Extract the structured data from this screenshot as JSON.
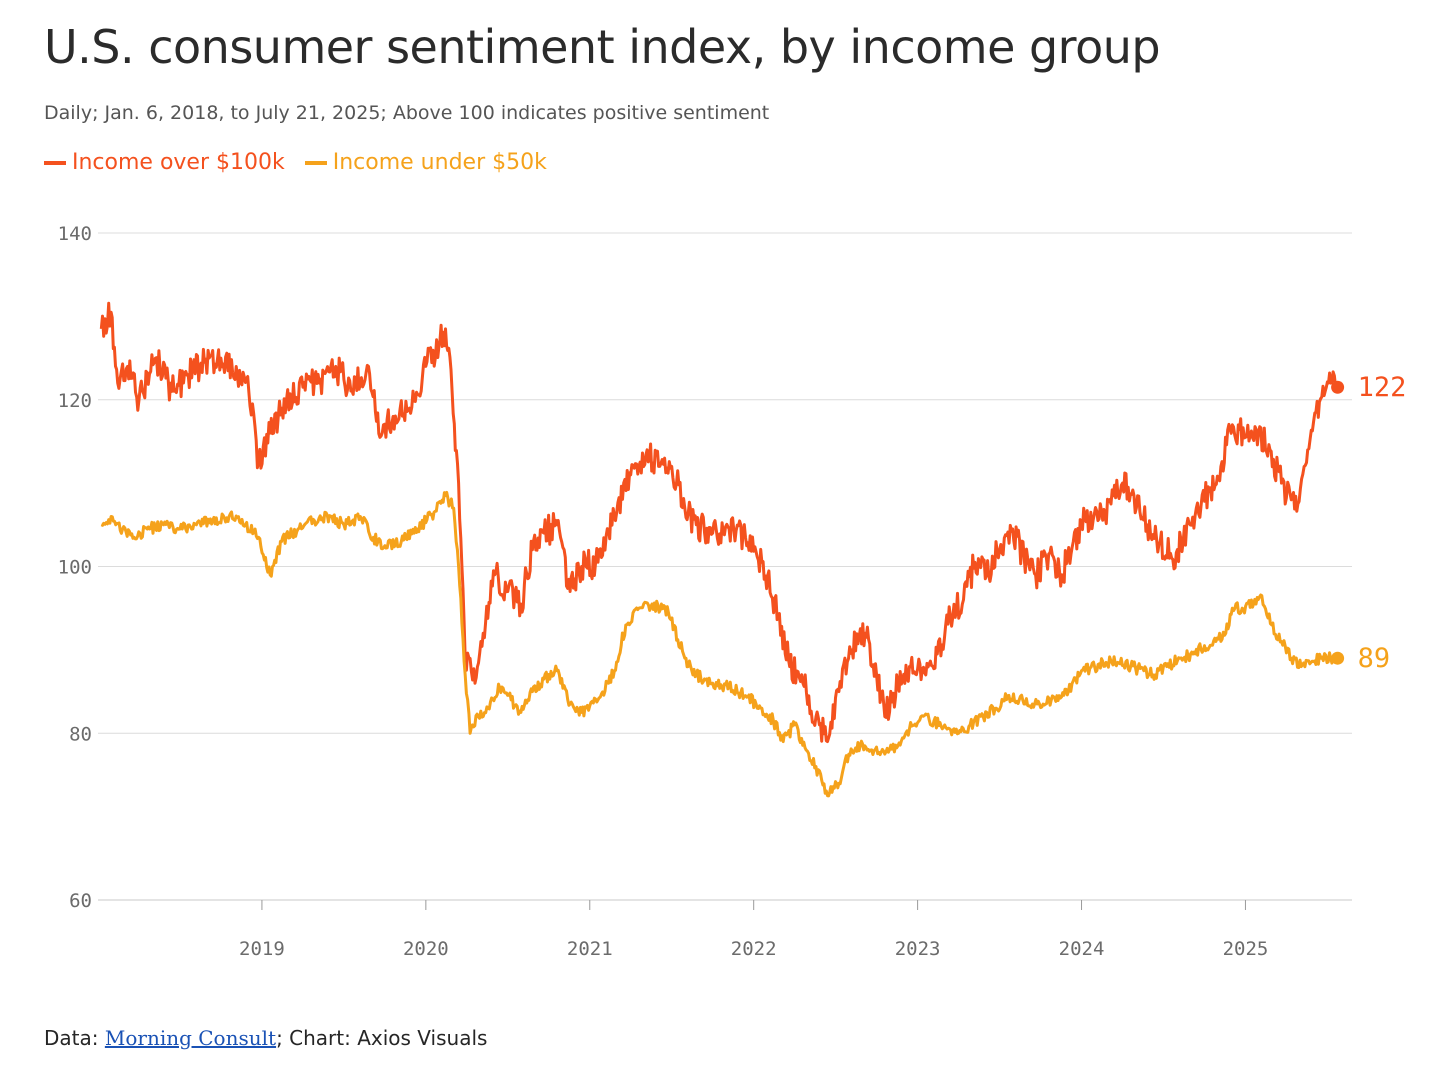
{
  "header": {
    "title": "U.S. consumer sentiment index, by income group",
    "subtitle": "Daily; Jan. 6, 2018, to July 21, 2025; Above 100 indicates positive sentiment"
  },
  "legend": [
    {
      "label": "Income over $100k",
      "color": "#f4511e"
    },
    {
      "label": "Income under $50k",
      "color": "#f5a21b"
    }
  ],
  "footer": {
    "data_prefix": "Data: ",
    "source_link": "Morning Consult",
    "suffix": "; Chart: Axios Visuals"
  },
  "chart_data": {
    "type": "line",
    "title": "U.S. consumer sentiment index, by income group",
    "xlabel": "",
    "ylabel": "",
    "xlim": [
      2018.0,
      2025.65
    ],
    "ylim": [
      60,
      140
    ],
    "yticks": [
      140,
      120,
      100,
      80,
      60
    ],
    "xticks": [
      2019,
      2020,
      2021,
      2022,
      2023,
      2024,
      2025
    ],
    "grid": true,
    "series": [
      {
        "name": "Income over $100k",
        "color": "#f4511e",
        "end_label": "122",
        "points": [
          [
            2018.02,
            128.5
          ],
          [
            2018.08,
            130.5
          ],
          [
            2018.12,
            122
          ],
          [
            2018.18,
            124
          ],
          [
            2018.25,
            120
          ],
          [
            2018.35,
            125
          ],
          [
            2018.45,
            121
          ],
          [
            2018.55,
            123
          ],
          [
            2018.65,
            124.5
          ],
          [
            2018.75,
            125
          ],
          [
            2018.85,
            123
          ],
          [
            2018.92,
            121
          ],
          [
            2018.98,
            112.5
          ],
          [
            2019.05,
            116
          ],
          [
            2019.15,
            120
          ],
          [
            2019.25,
            121.5
          ],
          [
            2019.35,
            122
          ],
          [
            2019.45,
            124
          ],
          [
            2019.55,
            121
          ],
          [
            2019.65,
            124
          ],
          [
            2019.72,
            115.5
          ],
          [
            2019.8,
            118
          ],
          [
            2019.9,
            119
          ],
          [
            2020.0,
            124
          ],
          [
            2020.08,
            126.5
          ],
          [
            2020.12,
            128.5
          ],
          [
            2020.16,
            121
          ],
          [
            2020.2,
            110
          ],
          [
            2020.24,
            89
          ],
          [
            2020.3,
            86
          ],
          [
            2020.35,
            92
          ],
          [
            2020.42,
            99
          ],
          [
            2020.5,
            97
          ],
          [
            2020.58,
            95.5
          ],
          [
            2020.65,
            102
          ],
          [
            2020.72,
            104
          ],
          [
            2020.8,
            105
          ],
          [
            2020.88,
            97
          ],
          [
            2020.95,
            100
          ],
          [
            2021.05,
            100.5
          ],
          [
            2021.15,
            106
          ],
          [
            2021.25,
            111
          ],
          [
            2021.35,
            114
          ],
          [
            2021.42,
            112
          ],
          [
            2021.5,
            112
          ],
          [
            2021.58,
            107
          ],
          [
            2021.65,
            105
          ],
          [
            2021.75,
            104
          ],
          [
            2021.85,
            104.5
          ],
          [
            2021.95,
            103.5
          ],
          [
            2022.05,
            100.5
          ],
          [
            2022.15,
            94
          ],
          [
            2022.22,
            88
          ],
          [
            2022.3,
            86
          ],
          [
            2022.38,
            82
          ],
          [
            2022.45,
            79
          ],
          [
            2022.52,
            85
          ],
          [
            2022.6,
            90
          ],
          [
            2022.68,
            92
          ],
          [
            2022.75,
            87
          ],
          [
            2022.8,
            82
          ],
          [
            2022.88,
            86
          ],
          [
            2022.95,
            88
          ],
          [
            2023.05,
            87
          ],
          [
            2023.12,
            89.5
          ],
          [
            2023.2,
            94
          ],
          [
            2023.28,
            96
          ],
          [
            2023.35,
            100.5
          ],
          [
            2023.42,
            99
          ],
          [
            2023.5,
            102
          ],
          [
            2023.58,
            104.5
          ],
          [
            2023.65,
            101
          ],
          [
            2023.72,
            99
          ],
          [
            2023.8,
            101.5
          ],
          [
            2023.88,
            99
          ],
          [
            2023.95,
            103
          ],
          [
            2024.02,
            106
          ],
          [
            2024.1,
            105.5
          ],
          [
            2024.18,
            107.5
          ],
          [
            2024.25,
            110
          ],
          [
            2024.32,
            108.5
          ],
          [
            2024.4,
            105
          ],
          [
            2024.48,
            103
          ],
          [
            2024.55,
            101
          ],
          [
            2024.62,
            103
          ],
          [
            2024.7,
            107
          ],
          [
            2024.78,
            109
          ],
          [
            2024.85,
            112
          ],
          [
            2024.92,
            117
          ],
          [
            2025.0,
            115.5
          ],
          [
            2025.08,
            116
          ],
          [
            2025.15,
            114
          ],
          [
            2025.22,
            110
          ],
          [
            2025.28,
            108
          ],
          [
            2025.32,
            107.5
          ],
          [
            2025.38,
            114
          ],
          [
            2025.43,
            118.5
          ],
          [
            2025.48,
            120.5
          ],
          [
            2025.52,
            122
          ],
          [
            2025.55,
            121.5
          ]
        ]
      },
      {
        "name": "Income under $50k",
        "color": "#f5a21b",
        "end_label": "89",
        "points": [
          [
            2018.02,
            105
          ],
          [
            2018.08,
            106
          ],
          [
            2018.15,
            104.5
          ],
          [
            2018.22,
            103.5
          ],
          [
            2018.3,
            104.5
          ],
          [
            2018.4,
            105
          ],
          [
            2018.5,
            104.5
          ],
          [
            2018.6,
            105
          ],
          [
            2018.7,
            105.5
          ],
          [
            2018.8,
            106
          ],
          [
            2018.9,
            105
          ],
          [
            2018.98,
            103.5
          ],
          [
            2019.05,
            99
          ],
          [
            2019.12,
            103
          ],
          [
            2019.22,
            104.5
          ],
          [
            2019.32,
            105.5
          ],
          [
            2019.42,
            106
          ],
          [
            2019.5,
            105
          ],
          [
            2019.6,
            106
          ],
          [
            2019.68,
            103.5
          ],
          [
            2019.75,
            102.5
          ],
          [
            2019.85,
            103
          ],
          [
            2019.95,
            104.5
          ],
          [
            2020.05,
            106.5
          ],
          [
            2020.12,
            108.5
          ],
          [
            2020.17,
            107
          ],
          [
            2020.2,
            100
          ],
          [
            2020.24,
            87
          ],
          [
            2020.27,
            80
          ],
          [
            2020.32,
            82
          ],
          [
            2020.38,
            83
          ],
          [
            2020.45,
            85.5
          ],
          [
            2020.52,
            84
          ],
          [
            2020.58,
            82.5
          ],
          [
            2020.65,
            85
          ],
          [
            2020.72,
            86.5
          ],
          [
            2020.8,
            87.5
          ],
          [
            2020.88,
            83.5
          ],
          [
            2020.95,
            82.5
          ],
          [
            2021.05,
            84
          ],
          [
            2021.15,
            87.5
          ],
          [
            2021.22,
            93
          ],
          [
            2021.3,
            95
          ],
          [
            2021.38,
            95.5
          ],
          [
            2021.48,
            94.5
          ],
          [
            2021.58,
            89
          ],
          [
            2021.65,
            87
          ],
          [
            2021.75,
            86
          ],
          [
            2021.85,
            85.5
          ],
          [
            2021.95,
            84.5
          ],
          [
            2022.05,
            83
          ],
          [
            2022.12,
            81.5
          ],
          [
            2022.18,
            79
          ],
          [
            2022.25,
            81
          ],
          [
            2022.32,
            78
          ],
          [
            2022.38,
            76
          ],
          [
            2022.45,
            72.5
          ],
          [
            2022.52,
            74
          ],
          [
            2022.58,
            77.5
          ],
          [
            2022.65,
            78.5
          ],
          [
            2022.72,
            78
          ],
          [
            2022.8,
            77.5
          ],
          [
            2022.88,
            78.5
          ],
          [
            2022.95,
            80.5
          ],
          [
            2023.02,
            82
          ],
          [
            2023.1,
            81.5
          ],
          [
            2023.18,
            80.5
          ],
          [
            2023.25,
            80
          ],
          [
            2023.32,
            81
          ],
          [
            2023.4,
            82
          ],
          [
            2023.48,
            83
          ],
          [
            2023.55,
            84.5
          ],
          [
            2023.62,
            84
          ],
          [
            2023.7,
            83.5
          ],
          [
            2023.78,
            83.5
          ],
          [
            2023.85,
            84.5
          ],
          [
            2023.92,
            85
          ],
          [
            2024.0,
            87.5
          ],
          [
            2024.08,
            88
          ],
          [
            2024.15,
            88.5
          ],
          [
            2024.22,
            88.5
          ],
          [
            2024.3,
            88
          ],
          [
            2024.38,
            87.5
          ],
          [
            2024.45,
            87
          ],
          [
            2024.52,
            88
          ],
          [
            2024.6,
            89
          ],
          [
            2024.68,
            89.5
          ],
          [
            2024.75,
            90.5
          ],
          [
            2024.82,
            91
          ],
          [
            2024.88,
            92
          ],
          [
            2024.92,
            95
          ],
          [
            2024.98,
            95
          ],
          [
            2025.05,
            95.5
          ],
          [
            2025.1,
            96.5
          ],
          [
            2025.16,
            93
          ],
          [
            2025.22,
            91
          ],
          [
            2025.28,
            89
          ],
          [
            2025.34,
            88
          ],
          [
            2025.4,
            88.5
          ],
          [
            2025.46,
            89
          ],
          [
            2025.52,
            89
          ],
          [
            2025.55,
            89
          ]
        ]
      }
    ]
  }
}
